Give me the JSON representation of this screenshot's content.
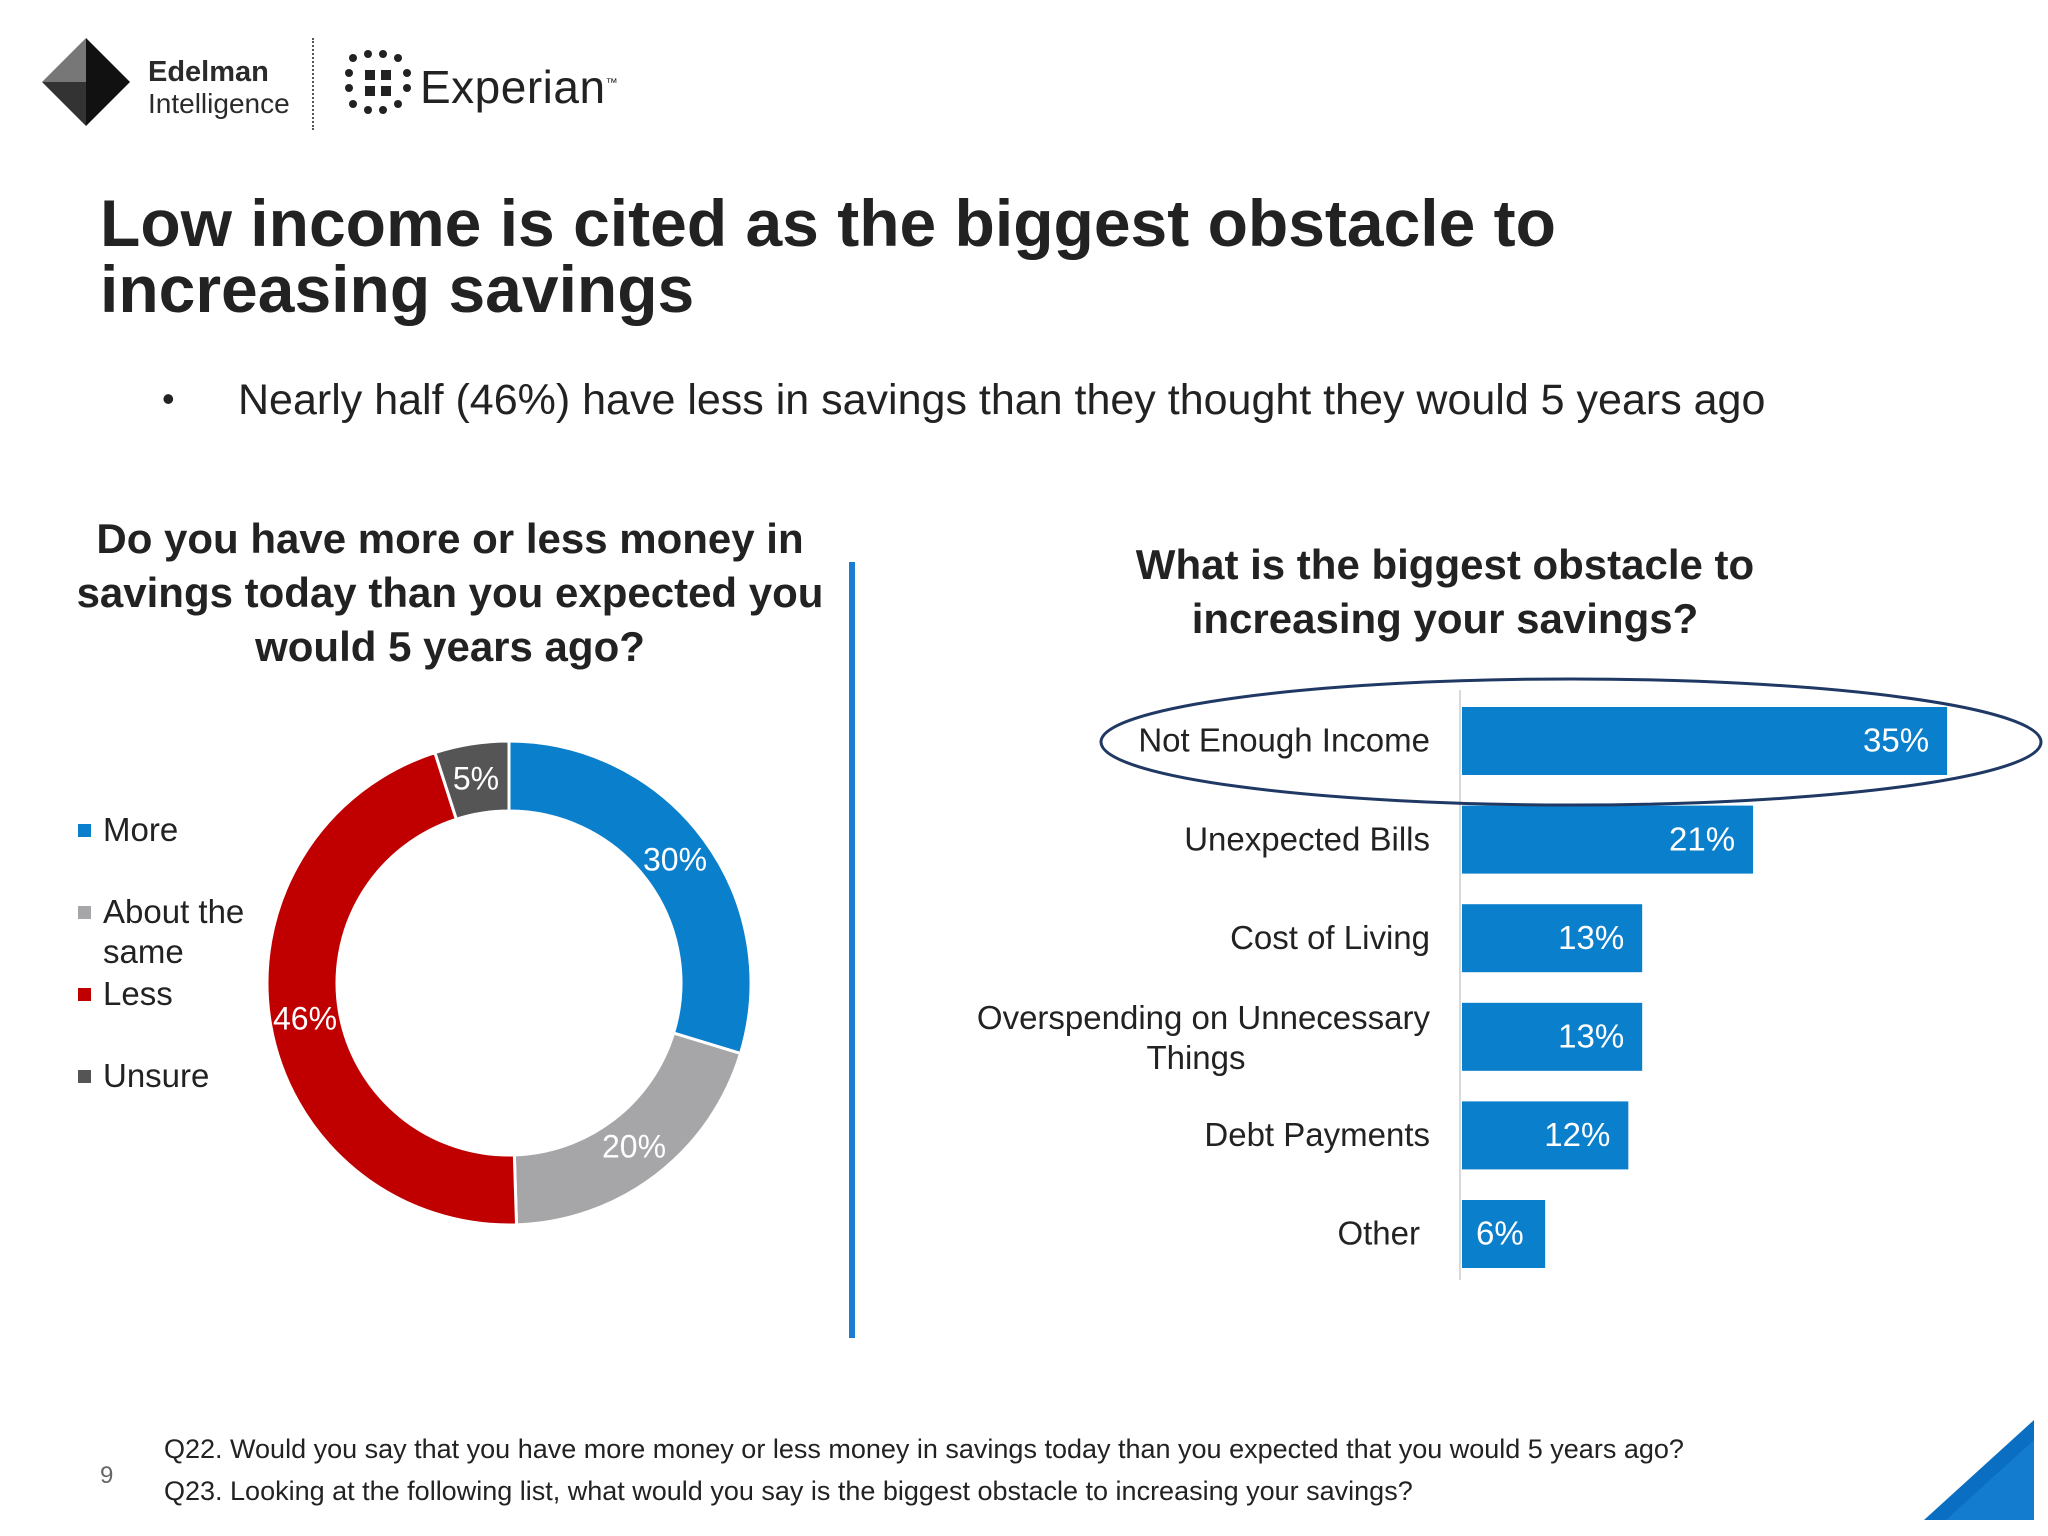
{
  "logos": {
    "edelman_line1": "Edelman",
    "edelman_line2": "Intelligence",
    "experian": "Experian",
    "experian_tm": "™"
  },
  "title": "Low income is cited as the biggest obstacle to increasing savings",
  "bullet": "Nearly half (46%) have less in savings than they thought they would 5 years ago",
  "colors": {
    "more": "#0a7fcc",
    "about_same": "#a6a6a8",
    "less": "#c00000",
    "unsure": "#555555",
    "bar": "#0a7fcc",
    "divider": "#1a7dd1",
    "highlight_ellipse": "#1f3864"
  },
  "chart_data": [
    {
      "type": "pie",
      "variant": "donut",
      "title": "Do you have more or less money in savings today than you expected you would 5 years ago?",
      "categories": [
        "More",
        "About the same",
        "Less",
        "Unsure"
      ],
      "values": [
        30,
        20,
        46,
        5
      ],
      "data_labels": [
        "30%",
        "20%",
        "46%",
        "5%"
      ],
      "legend": [
        "More",
        "About the same",
        "Less",
        "Unsure"
      ],
      "legend_position": "left"
    },
    {
      "type": "bar",
      "orientation": "horizontal",
      "title": "What is the biggest obstacle to increasing your savings?",
      "categories": [
        "Not Enough Income",
        "Unexpected Bills",
        "Cost of Living",
        "Overspending on Unnecessary Things",
        "Debt Payments",
        "Other"
      ],
      "values": [
        35,
        21,
        13,
        13,
        12,
        6
      ],
      "data_labels": [
        "35%",
        "21%",
        "13%",
        "13%",
        "12%",
        "6%"
      ],
      "highlighted_category": "Not Enough Income"
    }
  ],
  "footnote": {
    "q22": "Q22. Would you say that you have more money or less money in savings today than you expected that you would 5 years ago?",
    "q23": "Q23. Looking at the following list, what would you say is the biggest obstacle to increasing your savings?"
  },
  "page_number": "9"
}
